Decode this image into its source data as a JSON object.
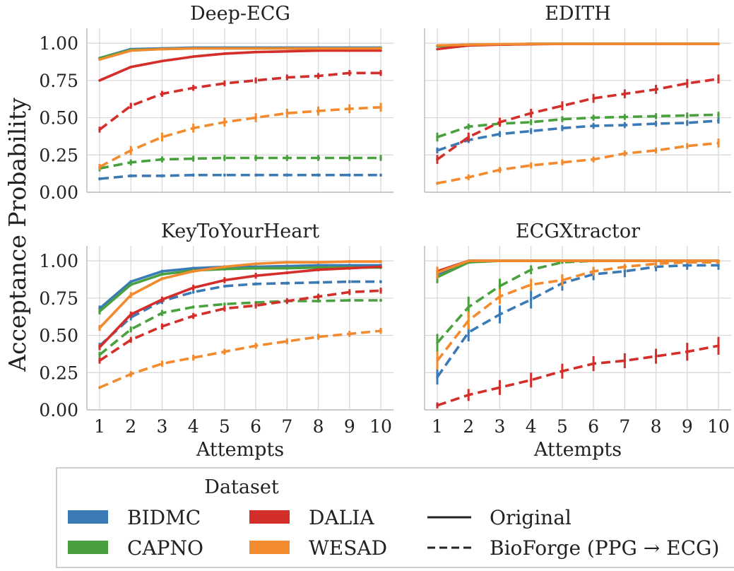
{
  "figure": {
    "ylabel": "Acceptance Probability",
    "xlabel": "Attempts"
  },
  "legend": {
    "title": "Dataset",
    "datasets": [
      {
        "name": "BIDMC",
        "color": "#3a7ab5"
      },
      {
        "name": "CAPNO",
        "color": "#4aa03e"
      },
      {
        "name": "DALIA",
        "color": "#d42e2b"
      },
      {
        "name": "WESAD",
        "color": "#f28a2e"
      }
    ],
    "styles": [
      {
        "name": "Original",
        "dash": "solid"
      },
      {
        "name": "BioForge (PPG → ECG)",
        "dash": "dashed"
      }
    ],
    "placement": "bottom"
  },
  "chart_data": [
    {
      "type": "line",
      "title": "Deep-ECG",
      "xlabel": "Attempts",
      "ylabel": "Acceptance Probability",
      "x": [
        1,
        2,
        3,
        4,
        5,
        6,
        7,
        8,
        9,
        10
      ],
      "ylim": [
        0,
        1.1
      ],
      "yticks": [
        "0.00",
        "0.25",
        "0.50",
        "0.75",
        "1.00"
      ],
      "show_xticks": false,
      "show_yticks": true,
      "grid": true,
      "series": [
        {
          "name": "BIDMC",
          "style": "Original",
          "values": [
            0.9,
            0.96,
            0.965,
            0.97,
            0.97,
            0.97,
            0.97,
            0.97,
            0.97,
            0.97
          ]
        },
        {
          "name": "CAPNO",
          "style": "Original",
          "values": [
            0.9,
            0.955,
            0.96,
            0.965,
            0.965,
            0.965,
            0.965,
            0.965,
            0.965,
            0.965
          ]
        },
        {
          "name": "DALIA",
          "style": "Original",
          "values": [
            0.75,
            0.84,
            0.88,
            0.91,
            0.93,
            0.94,
            0.945,
            0.95,
            0.95,
            0.95
          ]
        },
        {
          "name": "WESAD",
          "style": "Original",
          "values": [
            0.89,
            0.95,
            0.96,
            0.965,
            0.965,
            0.965,
            0.965,
            0.965,
            0.965,
            0.965
          ]
        },
        {
          "name": "BIDMC",
          "style": "BioForge (PPG → ECG)",
          "values": [
            0.09,
            0.11,
            0.11,
            0.115,
            0.115,
            0.115,
            0.115,
            0.115,
            0.115,
            0.115
          ],
          "err": [
            0.01,
            0.01,
            0.01,
            0.01,
            0.01,
            0.01,
            0.01,
            0.01,
            0.01,
            0.01
          ]
        },
        {
          "name": "CAPNO",
          "style": "BioForge (PPG → ECG)",
          "values": [
            0.16,
            0.2,
            0.22,
            0.225,
            0.23,
            0.23,
            0.23,
            0.23,
            0.23,
            0.23
          ],
          "err": [
            0.02,
            0.02,
            0.02,
            0.02,
            0.02,
            0.02,
            0.02,
            0.02,
            0.02,
            0.02
          ]
        },
        {
          "name": "DALIA",
          "style": "BioForge (PPG → ECG)",
          "values": [
            0.42,
            0.58,
            0.66,
            0.7,
            0.73,
            0.75,
            0.77,
            0.78,
            0.8,
            0.8
          ],
          "err": [
            0.02,
            0.02,
            0.02,
            0.02,
            0.02,
            0.02,
            0.02,
            0.02,
            0.02,
            0.02
          ]
        },
        {
          "name": "WESAD",
          "style": "BioForge (PPG → ECG)",
          "values": [
            0.17,
            0.28,
            0.37,
            0.43,
            0.47,
            0.5,
            0.53,
            0.545,
            0.56,
            0.57
          ],
          "err": [
            0.02,
            0.03,
            0.03,
            0.03,
            0.03,
            0.03,
            0.03,
            0.03,
            0.03,
            0.03
          ]
        }
      ]
    },
    {
      "type": "line",
      "title": "EDITH",
      "xlabel": "Attempts",
      "ylabel": "Acceptance Probability",
      "x": [
        1,
        2,
        3,
        4,
        5,
        6,
        7,
        8,
        9,
        10
      ],
      "ylim": [
        0,
        1.1
      ],
      "yticks": [
        "0.00",
        "0.25",
        "0.50",
        "0.75",
        "1.00"
      ],
      "show_xticks": false,
      "show_yticks": false,
      "grid": true,
      "series": [
        {
          "name": "BIDMC",
          "style": "Original",
          "values": [
            0.98,
            0.99,
            0.99,
            0.995,
            0.995,
            0.995,
            0.995,
            0.995,
            0.995,
            0.995
          ]
        },
        {
          "name": "CAPNO",
          "style": "Original",
          "values": [
            0.98,
            0.99,
            0.99,
            0.995,
            0.995,
            0.995,
            0.995,
            0.995,
            0.995,
            0.995
          ]
        },
        {
          "name": "DALIA",
          "style": "Original",
          "values": [
            0.96,
            0.985,
            0.99,
            0.993,
            0.995,
            0.995,
            0.995,
            0.995,
            0.995,
            0.995
          ]
        },
        {
          "name": "WESAD",
          "style": "Original",
          "values": [
            0.985,
            0.99,
            0.993,
            0.995,
            0.995,
            0.995,
            0.995,
            0.995,
            0.995,
            0.995
          ]
        },
        {
          "name": "BIDMC",
          "style": "BioForge (PPG → ECG)",
          "values": [
            0.28,
            0.35,
            0.39,
            0.41,
            0.43,
            0.445,
            0.45,
            0.46,
            0.465,
            0.48
          ],
          "err": [
            0.02,
            0.02,
            0.02,
            0.02,
            0.02,
            0.02,
            0.02,
            0.02,
            0.02,
            0.02
          ]
        },
        {
          "name": "CAPNO",
          "style": "BioForge (PPG → ECG)",
          "values": [
            0.37,
            0.44,
            0.46,
            0.47,
            0.49,
            0.5,
            0.505,
            0.51,
            0.515,
            0.52
          ],
          "err": [
            0.03,
            0.02,
            0.02,
            0.02,
            0.02,
            0.02,
            0.02,
            0.02,
            0.02,
            0.02
          ]
        },
        {
          "name": "DALIA",
          "style": "BioForge (PPG → ECG)",
          "values": [
            0.22,
            0.37,
            0.47,
            0.53,
            0.58,
            0.63,
            0.66,
            0.69,
            0.73,
            0.76
          ],
          "err": [
            0.03,
            0.03,
            0.03,
            0.03,
            0.03,
            0.03,
            0.03,
            0.03,
            0.03,
            0.03
          ]
        },
        {
          "name": "WESAD",
          "style": "BioForge (PPG → ECG)",
          "values": [
            0.06,
            0.1,
            0.15,
            0.18,
            0.2,
            0.22,
            0.26,
            0.28,
            0.31,
            0.33
          ],
          "err": [
            0.01,
            0.02,
            0.02,
            0.02,
            0.02,
            0.02,
            0.02,
            0.02,
            0.02,
            0.03
          ]
        }
      ]
    },
    {
      "type": "line",
      "title": "KeyToYourHeart",
      "xlabel": "Attempts",
      "ylabel": "Acceptance Probability",
      "x": [
        1,
        2,
        3,
        4,
        5,
        6,
        7,
        8,
        9,
        10
      ],
      "ylim": [
        0,
        1.1
      ],
      "yticks": [
        "0.00",
        "0.25",
        "0.50",
        "0.75",
        "1.00"
      ],
      "show_xticks": true,
      "show_yticks": true,
      "grid": true,
      "series": [
        {
          "name": "BIDMC",
          "style": "Original",
          "values": [
            0.68,
            0.86,
            0.93,
            0.95,
            0.96,
            0.96,
            0.965,
            0.97,
            0.97,
            0.97
          ],
          "err": [
            0.02,
            0.01,
            0.01,
            0.01,
            0.01,
            0.01,
            0.01,
            0.01,
            0.01,
            0.01
          ]
        },
        {
          "name": "CAPNO",
          "style": "Original",
          "values": [
            0.66,
            0.84,
            0.91,
            0.935,
            0.945,
            0.95,
            0.95,
            0.955,
            0.955,
            0.955
          ],
          "err": [
            0.02,
            0.01,
            0.01,
            0.01,
            0.01,
            0.01,
            0.01,
            0.01,
            0.01,
            0.01
          ]
        },
        {
          "name": "DALIA",
          "style": "Original",
          "values": [
            0.42,
            0.64,
            0.74,
            0.82,
            0.87,
            0.9,
            0.92,
            0.94,
            0.95,
            0.96
          ],
          "err": [
            0.02,
            0.02,
            0.02,
            0.02,
            0.02,
            0.02,
            0.01,
            0.01,
            0.01,
            0.01
          ]
        },
        {
          "name": "WESAD",
          "style": "Original",
          "values": [
            0.55,
            0.77,
            0.88,
            0.93,
            0.96,
            0.98,
            0.99,
            0.99,
            0.995,
            0.995
          ],
          "err": [
            0.02,
            0.02,
            0.01,
            0.01,
            0.01,
            0.01,
            0.01,
            0.01,
            0.01,
            0.01
          ]
        },
        {
          "name": "BIDMC",
          "style": "BioForge (PPG → ECG)",
          "values": [
            0.43,
            0.62,
            0.73,
            0.79,
            0.83,
            0.845,
            0.85,
            0.855,
            0.86,
            0.86
          ],
          "err": [
            0.02,
            0.02,
            0.02,
            0.01,
            0.01,
            0.01,
            0.01,
            0.01,
            0.01,
            0.01
          ]
        },
        {
          "name": "CAPNO",
          "style": "BioForge (PPG → ECG)",
          "values": [
            0.37,
            0.54,
            0.65,
            0.69,
            0.71,
            0.72,
            0.73,
            0.73,
            0.735,
            0.735
          ],
          "err": [
            0.02,
            0.02,
            0.02,
            0.01,
            0.01,
            0.01,
            0.01,
            0.01,
            0.01,
            0.01
          ]
        },
        {
          "name": "DALIA",
          "style": "BioForge (PPG → ECG)",
          "values": [
            0.33,
            0.47,
            0.56,
            0.63,
            0.68,
            0.7,
            0.73,
            0.76,
            0.79,
            0.8
          ],
          "err": [
            0.02,
            0.02,
            0.02,
            0.02,
            0.02,
            0.02,
            0.02,
            0.02,
            0.02,
            0.02
          ]
        },
        {
          "name": "WESAD",
          "style": "BioForge (PPG → ECG)",
          "values": [
            0.15,
            0.24,
            0.31,
            0.35,
            0.39,
            0.43,
            0.46,
            0.49,
            0.51,
            0.53
          ],
          "err": [
            0.01,
            0.02,
            0.02,
            0.02,
            0.02,
            0.02,
            0.02,
            0.02,
            0.02,
            0.02
          ]
        }
      ]
    },
    {
      "type": "line",
      "title": "ECGXtractor",
      "xlabel": "Attempts",
      "ylabel": "Acceptance Probability",
      "x": [
        1,
        2,
        3,
        4,
        5,
        6,
        7,
        8,
        9,
        10
      ],
      "ylim": [
        0,
        1.1
      ],
      "yticks": [
        "0.00",
        "0.25",
        "0.50",
        "0.75",
        "1.00"
      ],
      "show_xticks": true,
      "show_yticks": false,
      "grid": true,
      "series": [
        {
          "name": "BIDMC",
          "style": "Original",
          "values": [
            0.91,
            1.0,
            1.0,
            1.0,
            1.0,
            1.0,
            1.0,
            1.0,
            1.0,
            1.0
          ],
          "err": [
            0.04,
            0.0,
            0.0,
            0.0,
            0.0,
            0.0,
            0.0,
            0.0,
            0.0,
            0.0
          ]
        },
        {
          "name": "CAPNO",
          "style": "Original",
          "values": [
            0.89,
            0.99,
            1.0,
            1.0,
            1.0,
            1.0,
            1.0,
            1.0,
            1.0,
            1.0
          ],
          "err": [
            0.04,
            0.01,
            0.0,
            0.0,
            0.0,
            0.0,
            0.0,
            0.0,
            0.0,
            0.0
          ]
        },
        {
          "name": "DALIA",
          "style": "Original",
          "values": [
            0.93,
            1.0,
            1.0,
            1.0,
            1.0,
            1.0,
            1.0,
            1.0,
            1.0,
            1.0
          ],
          "err": [
            0.02,
            0.0,
            0.0,
            0.0,
            0.0,
            0.0,
            0.0,
            0.0,
            0.0,
            0.0
          ]
        },
        {
          "name": "WESAD",
          "style": "Original",
          "values": [
            0.92,
            1.0,
            1.0,
            1.0,
            1.0,
            1.0,
            1.0,
            1.0,
            1.0,
            1.0
          ],
          "err": [
            0.04,
            0.0,
            0.0,
            0.0,
            0.0,
            0.0,
            0.0,
            0.0,
            0.0,
            0.0
          ]
        },
        {
          "name": "BIDMC",
          "style": "BioForge (PPG → ECG)",
          "values": [
            0.22,
            0.52,
            0.64,
            0.74,
            0.85,
            0.91,
            0.93,
            0.96,
            0.97,
            0.97
          ],
          "err": [
            0.05,
            0.06,
            0.06,
            0.06,
            0.05,
            0.04,
            0.04,
            0.03,
            0.03,
            0.03
          ]
        },
        {
          "name": "CAPNO",
          "style": "BioForge (PPG → ECG)",
          "values": [
            0.45,
            0.69,
            0.83,
            0.94,
            0.99,
            1.0,
            1.0,
            1.0,
            1.0,
            1.0
          ],
          "err": [
            0.06,
            0.07,
            0.05,
            0.03,
            0.01,
            0.0,
            0.0,
            0.0,
            0.0,
            0.0
          ]
        },
        {
          "name": "DALIA",
          "style": "BioForge (PPG → ECG)",
          "values": [
            0.03,
            0.1,
            0.15,
            0.2,
            0.26,
            0.31,
            0.33,
            0.36,
            0.39,
            0.43
          ],
          "err": [
            0.02,
            0.04,
            0.05,
            0.05,
            0.05,
            0.05,
            0.05,
            0.05,
            0.06,
            0.06
          ]
        },
        {
          "name": "WESAD",
          "style": "BioForge (PPG → ECG)",
          "values": [
            0.33,
            0.6,
            0.76,
            0.84,
            0.87,
            0.93,
            0.96,
            0.98,
            0.99,
            0.99
          ],
          "err": [
            0.06,
            0.06,
            0.05,
            0.04,
            0.04,
            0.03,
            0.02,
            0.02,
            0.01,
            0.01
          ]
        }
      ]
    }
  ]
}
